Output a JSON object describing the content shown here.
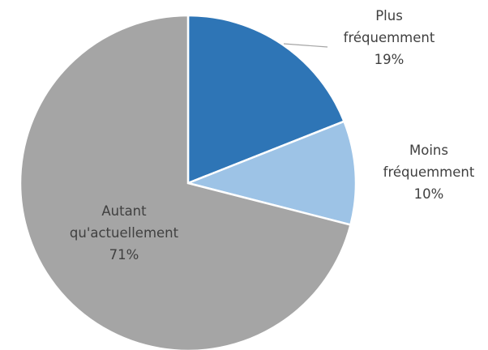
{
  "chart_data": {
    "type": "pie",
    "categories": [
      "Plus fréquemment",
      "Moins fréquemment",
      "Autant qu'actuellement"
    ],
    "values": [
      19,
      10,
      71
    ],
    "value_labels": [
      "19%",
      "10%",
      "71%"
    ],
    "colors": [
      "#2e75b6",
      "#9dc3e6",
      "#a5a5a5"
    ]
  }
}
